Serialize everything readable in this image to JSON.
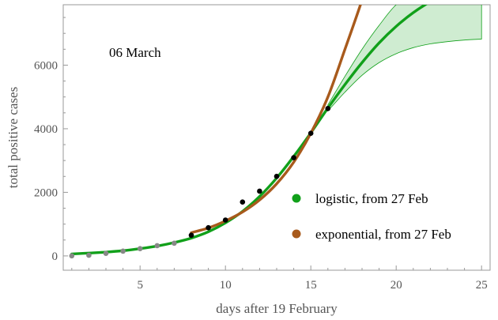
{
  "chart_data": {
    "type": "line",
    "title": "",
    "annotation": "06 March",
    "xlabel": "days after 19 February",
    "ylabel": "total positive cases",
    "xlim": [
      0.5,
      25.5
    ],
    "ylim": [
      -450,
      7900
    ],
    "xticks": [
      5,
      10,
      15,
      20,
      25
    ],
    "yticks": [
      0,
      2000,
      4000,
      6000
    ],
    "grid": false,
    "legend_position": "right",
    "points_early": {
      "color": "#888888",
      "x": [
        1,
        2,
        3,
        4,
        5,
        6,
        7
      ],
      "y": [
        3,
        20,
        79,
        150,
        229,
        322,
        400
      ]
    },
    "points_fit": {
      "color": "#000000",
      "x": [
        8,
        9,
        10,
        11,
        12,
        13,
        14,
        15,
        16
      ],
      "y": [
        650,
        888,
        1128,
        1694,
        2036,
        2502,
        3089,
        3858,
        4636
      ]
    },
    "series": [
      {
        "name": "logistic, from 27 Feb",
        "color": "#11a01a",
        "x": [
          1,
          2,
          3,
          4,
          5,
          6,
          7,
          8,
          9,
          10,
          11,
          12,
          13,
          14,
          15,
          16,
          17,
          18,
          19,
          20,
          21,
          22,
          23,
          24,
          25
        ],
        "y": [
          60,
          90,
          120,
          165,
          230,
          310,
          420,
          560,
          760,
          1040,
          1400,
          1870,
          2450,
          3130,
          3870,
          4650,
          5390,
          6080,
          6700,
          7220,
          7650,
          8000,
          8280,
          8500,
          8650
        ]
      },
      {
        "name": "exponential, from 27 Feb",
        "color": "#a85a1c",
        "x": [
          8,
          9,
          10,
          11,
          12,
          13,
          14,
          15,
          16,
          17,
          18,
          18.5
        ],
        "y": [
          730,
          880,
          1100,
          1380,
          1760,
          2270,
          2950,
          3860,
          5000,
          6500,
          8050,
          9000
        ]
      }
    ],
    "band": {
      "color": "#11a01a",
      "x": [
        16,
        17,
        18,
        19,
        20,
        21,
        22,
        23,
        24,
        25
      ],
      "upper": [
        4750,
        5650,
        6500,
        7250,
        7900,
        8200,
        8200,
        8200,
        8200,
        8200
      ],
      "lower": [
        4560,
        5150,
        5680,
        6080,
        6360,
        6550,
        6670,
        6740,
        6790,
        6820
      ]
    }
  }
}
